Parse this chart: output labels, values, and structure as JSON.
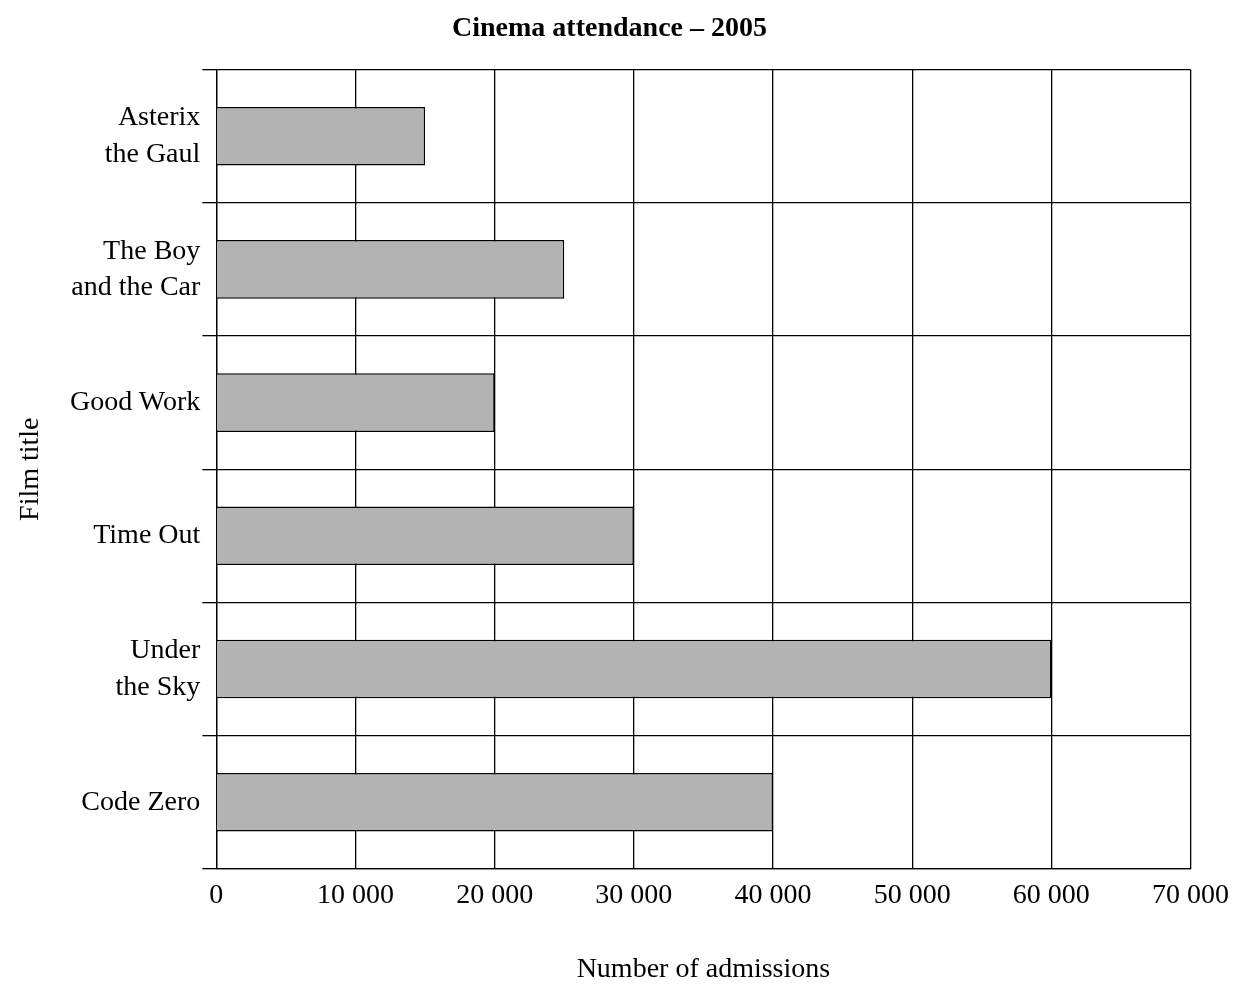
{
  "chart_data": {
    "type": "bar",
    "orientation": "horizontal",
    "title": "Cinema attendance – 2005",
    "xlabel": "Number of admissions",
    "ylabel": "Film title",
    "categories": [
      "Asterix the Gaul",
      "The Boy and the Car",
      "Good Work",
      "Time Out",
      "Under the Sky",
      "Code Zero"
    ],
    "values": [
      15000,
      25000,
      20000,
      30000,
      60000,
      40000
    ],
    "color": "#b3b3b3",
    "xlim": [
      0,
      70000
    ],
    "xticks": [
      0,
      {
        "value": 10000,
        "label": "10 000"
      },
      {
        "value": 20000,
        "label": "20 000"
      },
      {
        "value": 30000,
        "label": "30 000"
      },
      {
        "value": 40000,
        "label": "40 000"
      },
      {
        "value": 50000,
        "label": "50 000"
      },
      {
        "value": 60000,
        "label": "60 000"
      },
      {
        "value": 70000,
        "label": "70 000"
      }
    ],
    "grid": true,
    "legend": false
  }
}
